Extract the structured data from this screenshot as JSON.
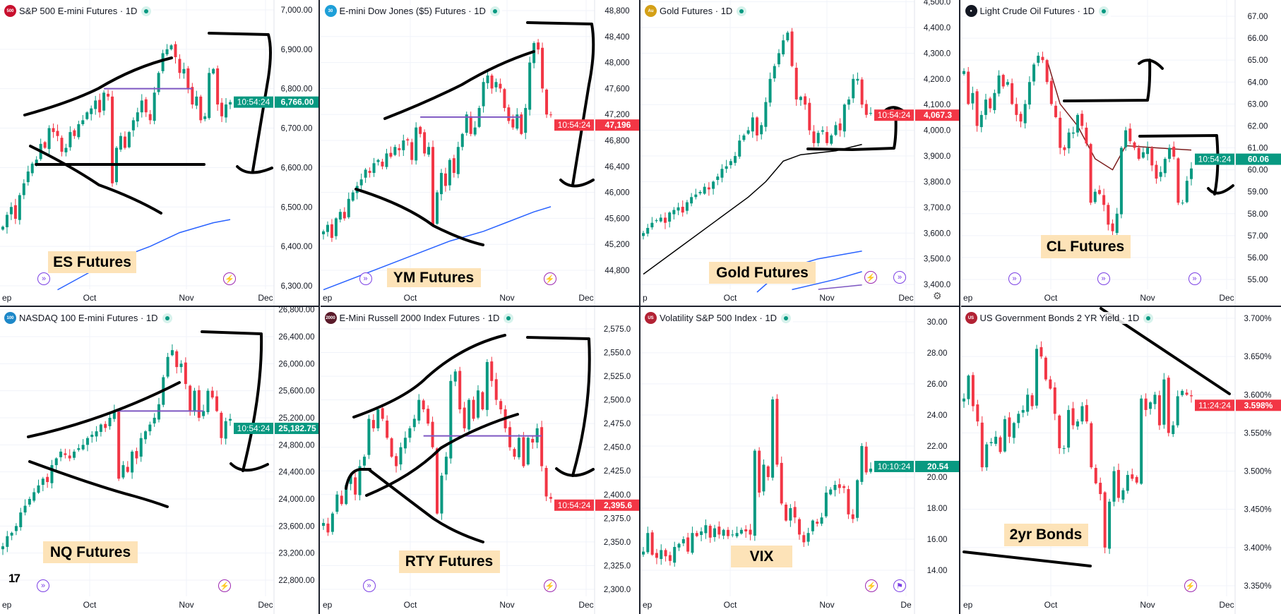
{
  "colors": {
    "up": "#089981",
    "down": "#f23645",
    "hline": "#7e57c2",
    "ma_blue": "#2962ff",
    "grid": "#f0f3fa"
  },
  "charts": [
    {
      "title": "S&P 500 E-mini Futures · 1D",
      "symbol_badge": "500",
      "symbol_color": "#c8102e",
      "note": "ES Futures",
      "ylim": [
        6291,
        7025
      ],
      "y_ticks": [
        [
          7000,
          "7,000.00"
        ],
        [
          6900,
          "6,900.00"
        ],
        [
          6800,
          "6,800.00"
        ],
        [
          6700,
          "6,700.00"
        ],
        [
          6600,
          "6,600.00"
        ],
        [
          6500,
          "6,500.00"
        ],
        [
          6400,
          "6,400.00"
        ],
        [
          6300,
          "6,300.00"
        ]
      ],
      "x_labels": [
        "ep",
        "Oct",
        "Nov",
        "Dec"
      ],
      "last": {
        "value": 6766,
        "price": "6,766.00",
        "timer": "10:54:24",
        "dir": "up"
      },
      "closes": [
        6450,
        6480,
        6500,
        6470,
        6530,
        6560,
        6590,
        6610,
        6620,
        6660,
        6650,
        6700,
        6690,
        6680,
        6640,
        6650,
        6690,
        6680,
        6710,
        6720,
        6740,
        6750,
        6770,
        6740,
        6790,
        6780,
        6560,
        6650,
        6680,
        6650,
        6690,
        6720,
        6740,
        6770,
        6740,
        6720,
        6790,
        6840,
        6890,
        6900,
        6910,
        6880,
        6840,
        6850,
        6800,
        6760,
        6780,
        6720,
        6730,
        6840,
        6850,
        6760,
        6730,
        6760,
        6766
      ],
      "hline": {
        "value": 6800,
        "from": 24,
        "to": 45
      },
      "lines": [
        {
          "color": "#2962ff",
          "points": [
            [
              13,
              6290
            ],
            [
              25,
              6360
            ],
            [
              35,
              6400
            ],
            [
              42,
              6435
            ],
            [
              50,
              6460
            ],
            [
              54,
              6468
            ]
          ]
        }
      ]
    },
    {
      "title": "E-mini Dow Jones ($5) Futures · 1D",
      "symbol_badge": "30",
      "symbol_color": "#1e9fd8",
      "note": "YM Futures",
      "ylim": [
        44507,
        48963
      ],
      "y_ticks": [
        [
          48800,
          "48,800"
        ],
        [
          48400,
          "48,400"
        ],
        [
          48000,
          "48,000"
        ],
        [
          47600,
          "47,600"
        ],
        [
          47200,
          "47,200"
        ],
        [
          46800,
          "46,800"
        ],
        [
          46400,
          "46,400"
        ],
        [
          46000,
          "46,000"
        ],
        [
          45600,
          "45,600"
        ],
        [
          45200,
          "45,200"
        ],
        [
          44800,
          "44,800"
        ]
      ],
      "x_labels": [
        "ep",
        "Oct",
        "Nov",
        "Dec"
      ],
      "last": {
        "value": 47196,
        "price": "47,196",
        "timer": "10:54:24",
        "dir": "down"
      },
      "closes": [
        45400,
        45500,
        45300,
        45600,
        45700,
        45600,
        45900,
        46000,
        46100,
        46200,
        46350,
        46300,
        46450,
        46500,
        46400,
        46600,
        46550,
        46700,
        46650,
        46800,
        46800,
        46500,
        47000,
        46900,
        46600,
        46700,
        45500,
        46000,
        46300,
        46100,
        46500,
        46300,
        46700,
        46900,
        47200,
        46900,
        47000,
        47300,
        47700,
        47800,
        47600,
        47700,
        47600,
        47300,
        47100,
        47000,
        47200,
        46900,
        47300,
        48000,
        48300,
        48200,
        47600,
        47200,
        47196
      ],
      "hline": {
        "value": 47160,
        "from": 23,
        "to": 47
      },
      "lines": [
        {
          "color": "#2962ff",
          "points": [
            [
              0,
              44500
            ],
            [
              10,
              44750
            ],
            [
              20,
              45000
            ],
            [
              30,
              45250
            ],
            [
              38,
              45400
            ],
            [
              44,
              45550
            ],
            [
              50,
              45700
            ],
            [
              54,
              45780
            ]
          ]
        }
      ]
    },
    {
      "title": "Gold Futures · 1D",
      "symbol_badge": "Au",
      "symbol_color": "#d4a017",
      "note": "Gold Futures",
      "ylim": [
        3381,
        4507
      ],
      "y_ticks": [
        [
          4500,
          "4,500.0"
        ],
        [
          4400,
          "4,400.0"
        ],
        [
          4300,
          "4,300.0"
        ],
        [
          4200,
          "4,200.0"
        ],
        [
          4100,
          "4,100.0"
        ],
        [
          4000,
          "4,000.0"
        ],
        [
          3900,
          "3,900.0"
        ],
        [
          3800,
          "3,800.0"
        ],
        [
          3700,
          "3,700.0"
        ],
        [
          3600,
          "3,600.0"
        ],
        [
          3500,
          "3,500.0"
        ],
        [
          3400,
          "3,400.0"
        ]
      ],
      "x_labels": [
        "p",
        "Oct",
        "Nov",
        "Dec"
      ],
      "last": {
        "value": 4067.3,
        "price": "4,067.3",
        "timer": "10:54:24",
        "dir": "down"
      },
      "closes": [
        3600,
        3620,
        3640,
        3650,
        3660,
        3640,
        3680,
        3690,
        3700,
        3680,
        3720,
        3740,
        3750,
        3760,
        3780,
        3770,
        3800,
        3820,
        3850,
        3860,
        3880,
        3900,
        3960,
        3980,
        4000,
        4050,
        3980,
        4020,
        4110,
        4200,
        4250,
        4300,
        4350,
        4380,
        4250,
        4120,
        4130,
        4100,
        4000,
        3950,
        3990,
        4000,
        3950,
        3980,
        4020,
        4000,
        4100,
        4120,
        4200,
        4200,
        4100,
        4060,
        4067.3
      ],
      "hline": null,
      "lines": [
        {
          "color": "#000000",
          "points": [
            [
              0,
              3440
            ],
            [
              8,
              3540
            ],
            [
              16,
              3640
            ],
            [
              24,
              3740
            ],
            [
              28,
              3800
            ],
            [
              32,
              3880
            ],
            [
              36,
              3905
            ],
            [
              44,
              3920
            ],
            [
              50,
              3945
            ]
          ]
        },
        {
          "color": "#2962ff",
          "points": [
            [
              26,
              3370
            ],
            [
              32,
              3460
            ],
            [
              40,
              3500
            ],
            [
              50,
              3530
            ]
          ]
        },
        {
          "color": "#2962ff",
          "points": [
            [
              34,
              3380
            ],
            [
              44,
              3420
            ],
            [
              50,
              3450
            ]
          ]
        },
        {
          "color": "#7e57c2",
          "points": [
            [
              40,
              3381
            ],
            [
              50,
              3398
            ]
          ]
        }
      ]
    },
    {
      "title": "Light Crude Oil Futures · 1D",
      "symbol_badge": "●",
      "symbol_color": "#131722",
      "note": "CL Futures",
      "ylim": [
        54.55,
        67.74
      ],
      "y_ticks": [
        [
          67,
          "67.00"
        ],
        [
          66,
          "66.00"
        ],
        [
          65,
          "65.00"
        ],
        [
          64,
          "64.00"
        ],
        [
          63,
          "63.00"
        ],
        [
          62,
          "62.00"
        ],
        [
          61,
          "61.00"
        ],
        [
          60,
          "60.00"
        ],
        [
          59,
          "59.00"
        ],
        [
          58,
          "58.00"
        ],
        [
          57,
          "57.00"
        ],
        [
          56,
          "56.00"
        ],
        [
          55,
          "55.00"
        ]
      ],
      "x_labels": [
        "ep",
        "Oct",
        "Nov",
        "Dec"
      ],
      "last": {
        "value": 60.06,
        "price": "60.06",
        "timer": "10:54:24",
        "dir": "up"
      },
      "closes": [
        64.5,
        63.0,
        63.5,
        62.0,
        62.5,
        63.2,
        62.8,
        63.5,
        64.3,
        63.8,
        64.0,
        63.0,
        62.5,
        62.2,
        63.0,
        64.0,
        64.8,
        65.2,
        65.0,
        64.0,
        63.0,
        62.4,
        61.0,
        60.9,
        61.7,
        61.7,
        62.5,
        62.0,
        61.2,
        58.5,
        59.0,
        58.9,
        58.4,
        57.5,
        57.2,
        58.0,
        61.0,
        61.8,
        61.3,
        61.0,
        60.5,
        60.8,
        61.0,
        60.2,
        59.6,
        59.9,
        60.5,
        61.0,
        60.6,
        58.5,
        58.5,
        59.5,
        60.06
      ],
      "hline": null,
      "lines": [
        {
          "color": "#7b1c1c",
          "points": [
            [
              19,
              65.0
            ],
            [
              22,
              63.0
            ],
            [
              26,
              62.0
            ],
            [
              30,
              60.5
            ],
            [
              34,
              60.0
            ],
            [
              37,
              61.1
            ],
            [
              44,
              61.0
            ],
            [
              52,
              60.9
            ]
          ]
        }
      ]
    },
    {
      "title": "NASDAQ 100 E-mini Futures · 1D",
      "symbol_badge": "100",
      "symbol_color": "#1e88c8",
      "note": "NQ Futures",
      "ylim": [
        22560,
        26838
      ],
      "y_ticks": [
        [
          26800,
          "26,800.00"
        ],
        [
          26400,
          "26,400.00"
        ],
        [
          26000,
          "26,000.00"
        ],
        [
          25600,
          "25,600.00"
        ],
        [
          25200,
          "25,200.00"
        ],
        [
          24800,
          "24,800.00"
        ],
        [
          24400,
          "24,400.00"
        ],
        [
          24000,
          "24,000.00"
        ],
        [
          23600,
          "23,600.00"
        ],
        [
          23200,
          "23,200.00"
        ],
        [
          22800,
          "22,800.00"
        ]
      ],
      "x_labels": [
        "ep",
        "Oct",
        "Nov",
        "Dec"
      ],
      "last": {
        "value": 25182.75,
        "price": "25,182.75",
        "timer": "10:54:24",
        "dir": "up"
      },
      "closes": [
        23300,
        23450,
        23500,
        23600,
        23800,
        23900,
        24000,
        24100,
        24200,
        24300,
        24250,
        24500,
        24600,
        24700,
        24650,
        24600,
        24700,
        24750,
        24800,
        24900,
        24950,
        25000,
        25100,
        25050,
        25200,
        25300,
        24300,
        24500,
        24400,
        24700,
        24600,
        24900,
        25000,
        25100,
        25200,
        25400,
        25800,
        26100,
        26200,
        25950,
        26000,
        25700,
        25300,
        25600,
        25200,
        25300,
        25600,
        25500,
        25300,
        24900,
        25150,
        25182.75
      ],
      "hline": {
        "value": 25300,
        "from": 25,
        "to": 45
      },
      "lines": []
    },
    {
      "title": "E-Mini Russell 2000 Index Futures · 1D",
      "symbol_badge": "2000",
      "symbol_color": "#5a1a2a",
      "note": "RTY Futures",
      "ylim": [
        2292.5,
        2598.1
      ],
      "y_ticks": [
        [
          2575,
          "2,575.0"
        ],
        [
          2550,
          "2,550.0"
        ],
        [
          2525,
          "2,525.0"
        ],
        [
          2500,
          "2,500.0"
        ],
        [
          2475,
          "2,475.0"
        ],
        [
          2450,
          "2,450.0"
        ],
        [
          2425,
          "2,425.0"
        ],
        [
          2400,
          "2,400.0"
        ],
        [
          2375,
          "2,375.0"
        ],
        [
          2350,
          "2,350.0"
        ],
        [
          2325,
          "2,325.0"
        ],
        [
          2300,
          "2,300.0"
        ]
      ],
      "x_labels": [
        "ep",
        "Oct",
        "Nov",
        "Dec"
      ],
      "last": {
        "value": 2395.6,
        "price": "2,395.6",
        "timer": "10:54:24",
        "dir": "down"
      },
      "closes": [
        2370,
        2360,
        2380,
        2400,
        2390,
        2410,
        2420,
        2400,
        2430,
        2440,
        2480,
        2470,
        2490,
        2480,
        2460,
        2440,
        2430,
        2450,
        2460,
        2470,
        2480,
        2500,
        2490,
        2475,
        2450,
        2380,
        2420,
        2440,
        2520,
        2530,
        2490,
        2470,
        2500,
        2480,
        2510,
        2490,
        2540,
        2520,
        2500,
        2490,
        2470,
        2450,
        2440,
        2460,
        2430,
        2460,
        2455,
        2470,
        2430,
        2398,
        2395.6
      ],
      "hline": {
        "value": 2462,
        "from": 22,
        "to": 48
      },
      "lines": []
    },
    {
      "title": "Volatility S&P 500 Index · 1D",
      "symbol_badge": "US",
      "symbol_color": "#b22234",
      "note": "VIX",
      "ylim": [
        12.32,
        30.95
      ],
      "y_ticks": [
        [
          30,
          "30.00"
        ],
        [
          28,
          "28.00"
        ],
        [
          26,
          "26.00"
        ],
        [
          24,
          "24.00"
        ],
        [
          22,
          "22.00"
        ],
        [
          20,
          "20.00"
        ],
        [
          18,
          "18.00"
        ],
        [
          16,
          "16.00"
        ],
        [
          14,
          "14.00"
        ]
      ],
      "x_labels": [
        "ep",
        "Oct",
        "Nov",
        "De"
      ],
      "last": {
        "value": 20.54,
        "price": "20.54",
        "timer": "10:10:24",
        "dir": "up"
      },
      "closes": [
        15.2,
        16.4,
        15.0,
        14.8,
        15.3,
        14.9,
        14.6,
        15.5,
        15.7,
        16.0,
        15.2,
        16.4,
        16.2,
        16.5,
        16.9,
        16.1,
        16.7,
        16.3,
        16.6,
        16.2,
        16.3,
        16.4,
        16.6,
        16.5,
        16.3,
        21.7,
        19.0,
        20.8,
        20.0,
        25.0,
        20.8,
        18.3,
        17.2,
        18.0,
        17.4,
        16.3,
        15.8,
        16.4,
        17.2,
        17.0,
        17.4,
        19.0,
        19.2,
        19.5,
        19.3,
        19.3,
        17.6,
        17.3,
        19.8,
        22.0,
        20.3,
        20.54
      ],
      "hline": null,
      "lines": []
    },
    {
      "title": "US Government Bonds 2 YR Yield · 1D",
      "symbol_badge": "US",
      "symbol_color": "#b22234",
      "note": "2yr Bonds",
      "ylim": [
        3.3361,
        3.7148
      ],
      "y_ticks": [
        [
          3.7,
          "3.700%"
        ],
        [
          3.65,
          "3.650%"
        ],
        [
          3.6,
          "3.600%"
        ],
        [
          3.55,
          "3.550%"
        ],
        [
          3.5,
          "3.500%"
        ],
        [
          3.45,
          "3.450%"
        ],
        [
          3.4,
          "3.400%"
        ],
        [
          3.35,
          "3.350%"
        ]
      ],
      "x_labels": [
        "ep",
        "Oct",
        "Nov",
        "Dec"
      ],
      "last": {
        "value": 3.598,
        "price": "3.598%",
        "timer": "11:24:24",
        "dir": "down"
      },
      "closes": [
        3.595,
        3.625,
        3.585,
        3.565,
        3.505,
        3.535,
        3.538,
        3.545,
        3.525,
        3.568,
        3.545,
        3.563,
        3.575,
        3.58,
        3.6,
        3.585,
        3.66,
        3.65,
        3.62,
        3.608,
        3.575,
        3.53,
        3.53,
        3.58,
        3.56,
        3.565,
        3.585,
        3.565,
        3.505,
        3.484,
        3.47,
        3.4,
        3.46,
        3.5,
        3.465,
        3.475,
        3.495,
        3.49,
        3.485,
        3.595,
        3.58,
        3.59,
        3.6,
        3.56,
        3.62,
        3.55,
        3.56,
        3.598,
        3.605,
        3.6,
        3.598
      ],
      "hline": null,
      "lines": []
    }
  ]
}
